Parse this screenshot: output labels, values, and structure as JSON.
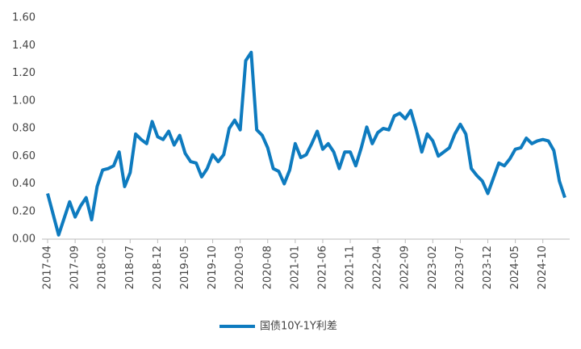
{
  "chart_data": {
    "type": "line",
    "categories": [
      "2017-04",
      null,
      null,
      null,
      null,
      "2017-09",
      null,
      null,
      null,
      null,
      "2018-02",
      null,
      null,
      null,
      null,
      "2018-07",
      null,
      null,
      null,
      null,
      "2018-12",
      null,
      null,
      null,
      null,
      "2019-05",
      null,
      null,
      null,
      null,
      "2019-10",
      null,
      null,
      null,
      null,
      "2020-03",
      null,
      null,
      null,
      null,
      "2020-08",
      null,
      null,
      null,
      null,
      "2021-01",
      null,
      null,
      null,
      null,
      "2021-06",
      null,
      null,
      null,
      null,
      "2021-11",
      null,
      null,
      null,
      null,
      "2022-04",
      null,
      null,
      null,
      null,
      "2022-09",
      null,
      null,
      null,
      null,
      "2023-02",
      null,
      null,
      null,
      null,
      "2023-07",
      null,
      null,
      null,
      null,
      "2023-12",
      null,
      null,
      null,
      null,
      "2024-05",
      null,
      null,
      null,
      null,
      "2024-10",
      null,
      null,
      null,
      null
    ],
    "series": [
      {
        "name": "国债10Y-1Y利差",
        "color": "#0e7bbf",
        "values": [
          0.33,
          0.18,
          0.03,
          0.15,
          0.27,
          0.16,
          0.24,
          0.3,
          0.14,
          0.38,
          0.5,
          0.51,
          0.53,
          0.63,
          0.38,
          0.48,
          0.76,
          0.72,
          0.69,
          0.85,
          0.74,
          0.72,
          0.78,
          0.68,
          0.75,
          0.62,
          0.56,
          0.55,
          0.45,
          0.51,
          0.61,
          0.56,
          0.61,
          0.8,
          0.86,
          0.79,
          1.29,
          1.35,
          0.79,
          0.75,
          0.66,
          0.51,
          0.49,
          0.4,
          0.5,
          0.69,
          0.59,
          0.61,
          0.69,
          0.78,
          0.65,
          0.69,
          0.63,
          0.51,
          0.63,
          0.63,
          0.53,
          0.66,
          0.81,
          0.69,
          0.77,
          0.8,
          0.79,
          0.89,
          0.91,
          0.87,
          0.93,
          0.79,
          0.63,
          0.76,
          0.71,
          0.6,
          0.63,
          0.66,
          0.76,
          0.83,
          0.76,
          0.51,
          0.46,
          0.42,
          0.33,
          0.44,
          0.55,
          0.53,
          0.58,
          0.65,
          0.66,
          0.73,
          0.69,
          0.71,
          0.72,
          0.71,
          0.64,
          0.42,
          0.3
        ]
      }
    ],
    "ylim": [
      0,
      1.6
    ],
    "yticks": [
      {
        "value": 0,
        "label": "0.00"
      },
      {
        "value": 0.2,
        "label": "0.20"
      },
      {
        "value": 0.4,
        "label": "0.40"
      },
      {
        "value": 0.6,
        "label": "0.60"
      },
      {
        "value": 0.8,
        "label": "0.80"
      },
      {
        "value": 1,
        "label": "1.00"
      },
      {
        "value": 1.2,
        "label": "1.20"
      },
      {
        "value": 1.4,
        "label": "1.40"
      },
      {
        "value": 1.6,
        "label": "1.60"
      }
    ],
    "grid": false,
    "legend": "bottom"
  }
}
